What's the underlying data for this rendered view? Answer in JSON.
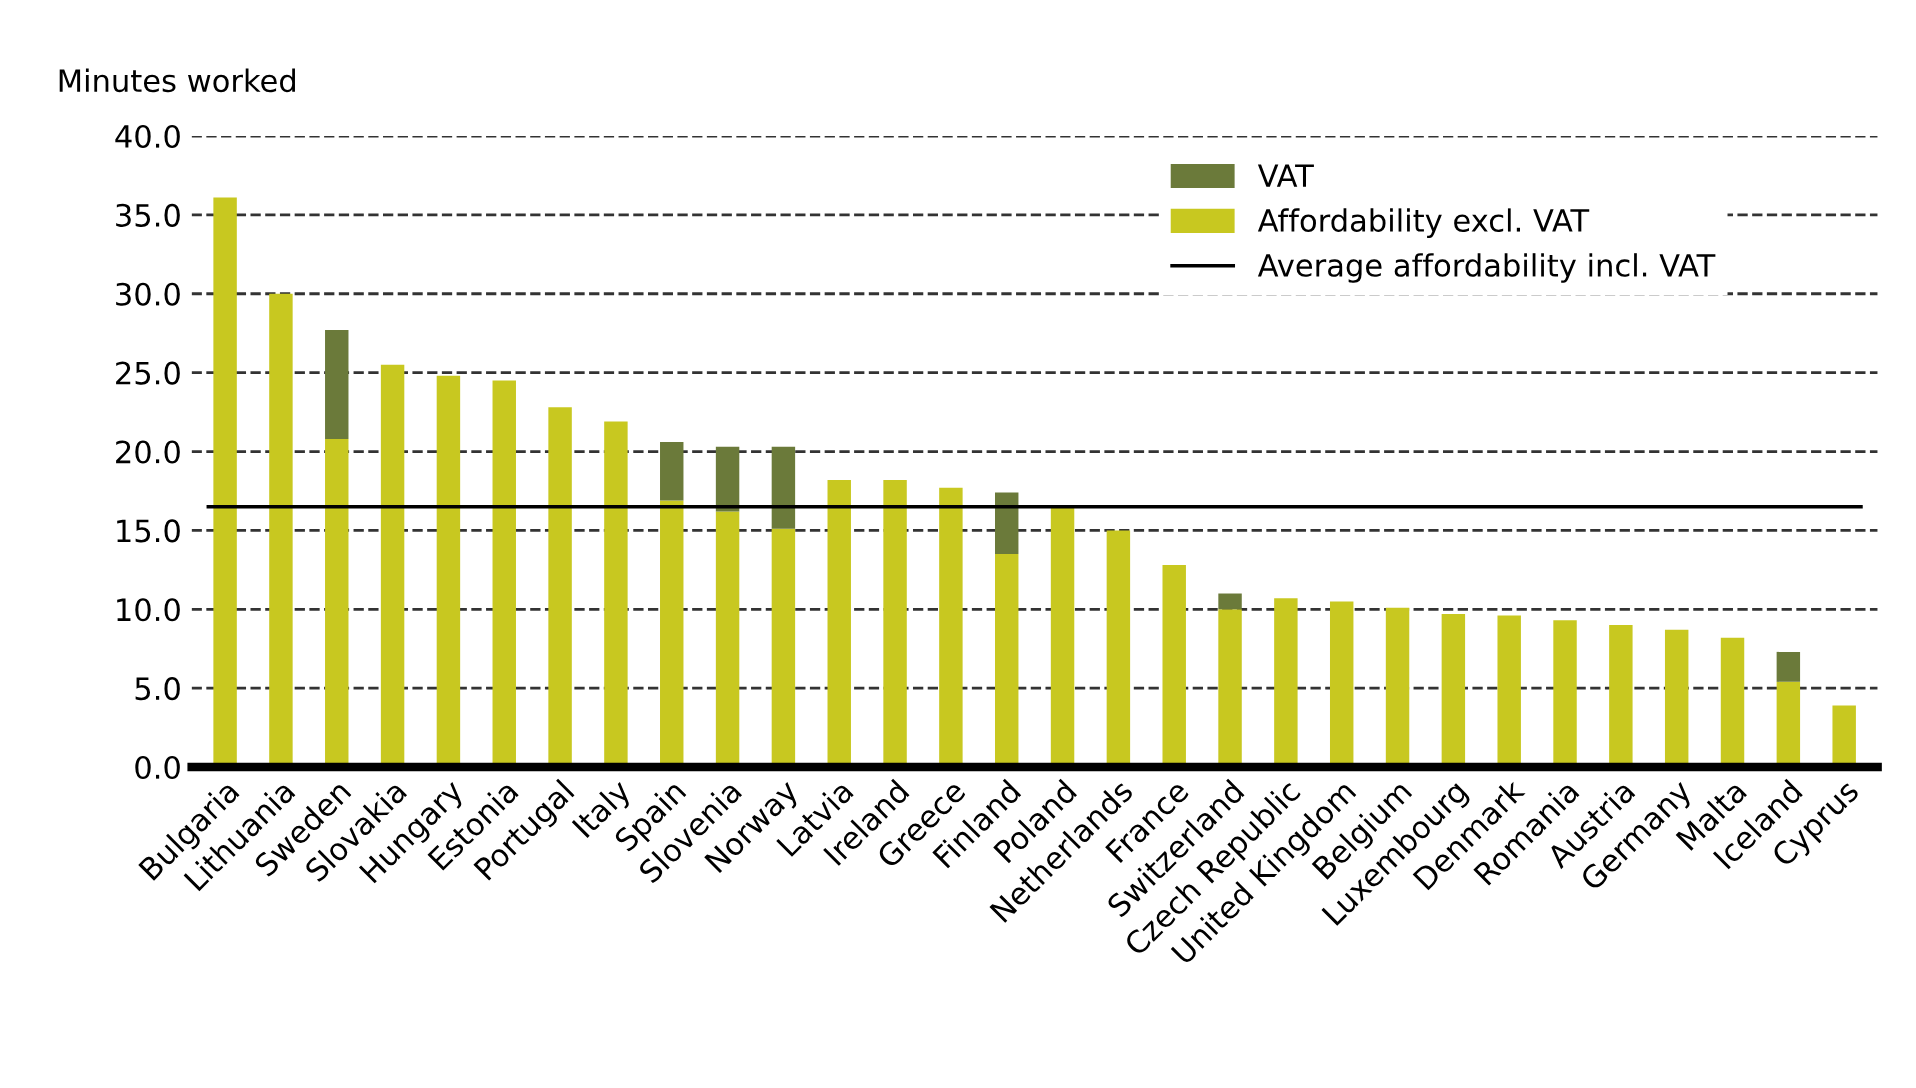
{
  "chart_data": {
    "type": "bar",
    "stacked": true,
    "ylabel": "Minutes worked",
    "categories": [
      "Bulgaria",
      "Lithuania",
      "Sweden",
      "Slovakia",
      "Hungary",
      "Estonia",
      "Portugal",
      "Italy",
      "Spain",
      "Slovenia",
      "Norway",
      "Latvia",
      "Ireland",
      "Greece",
      "Finland",
      "Poland",
      "Netherlands",
      "France",
      "Switzerland",
      "Czech Republic",
      "United Kingdom",
      "Belgium",
      "Luxembourg",
      "Denmark",
      "Romania",
      "Austria",
      "Germany",
      "Malta",
      "Iceland",
      "Cyprus"
    ],
    "series": [
      {
        "name": "Affordability excl. VAT",
        "color": "#c8c820",
        "values": [
          36.1,
          30.0,
          20.8,
          25.5,
          24.8,
          24.5,
          22.8,
          21.9,
          16.9,
          16.2,
          15.1,
          18.2,
          18.2,
          17.7,
          13.5,
          16.5,
          15.0,
          12.8,
          10.0,
          10.7,
          10.5,
          10.1,
          9.7,
          9.6,
          9.3,
          9.0,
          8.7,
          8.2,
          5.4,
          3.9
        ]
      },
      {
        "name": "VAT",
        "color": "#6b7a3a",
        "values": [
          null,
          null,
          6.9,
          null,
          null,
          null,
          null,
          null,
          3.7,
          4.1,
          5.2,
          null,
          null,
          null,
          3.9,
          null,
          null,
          null,
          1.0,
          null,
          null,
          null,
          null,
          null,
          null,
          null,
          null,
          null,
          1.9,
          null
        ]
      }
    ],
    "ref_lines": [
      {
        "axis": "y",
        "value": 16.5,
        "label": "Average affordability incl. VAT",
        "color": "#000000",
        "line_style": "solid"
      }
    ],
    "ylim": [
      0,
      40
    ],
    "yticks": [
      {
        "value": 0,
        "label": "0.0"
      },
      {
        "value": 5,
        "label": "5.0"
      },
      {
        "value": 10,
        "label": "10.0"
      },
      {
        "value": 15,
        "label": "15.0"
      },
      {
        "value": 20,
        "label": "20.0"
      },
      {
        "value": 25,
        "label": "25.0"
      },
      {
        "value": 30,
        "label": "30.0"
      },
      {
        "value": 35,
        "label": "35.0"
      },
      {
        "value": 40,
        "label": "40.0"
      }
    ],
    "grid": "y",
    "legend": "top right"
  }
}
